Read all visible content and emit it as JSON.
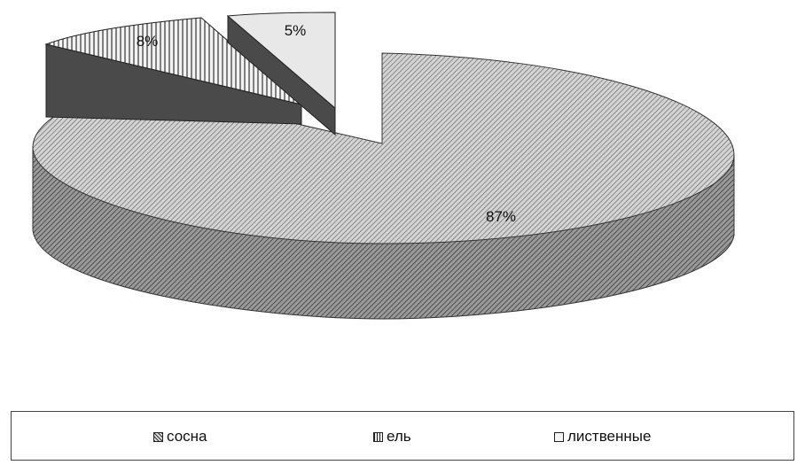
{
  "chart_data": {
    "type": "pie",
    "categories": [
      "сосна",
      "ель",
      "лиственные"
    ],
    "values": [
      87,
      8,
      5
    ],
    "data_labels": [
      "87%",
      "8%",
      "5%"
    ],
    "legend_position": "bottom",
    "colors": {
      "сосна": "#c7c7c7",
      "ель": "#b0b0b0",
      "лиственные": "#e8e8e8",
      "side_dark": "#4a4a4a"
    }
  }
}
